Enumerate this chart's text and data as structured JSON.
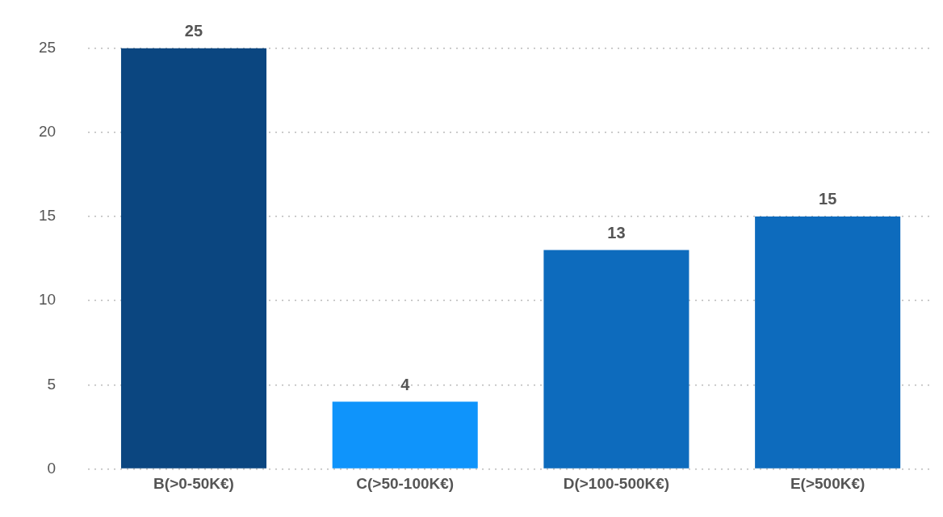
{
  "chart_data": {
    "type": "bar",
    "categories": [
      "B(>0-50K€)",
      "C(>50-100K€)",
      "D(>100-500K€)",
      "E(>500K€)"
    ],
    "values": [
      25,
      4,
      13,
      15
    ],
    "colors": [
      "#0b4680",
      "#0f94fb",
      "#0d6bbd",
      "#0d6bbd"
    ],
    "ylim": [
      0,
      25
    ],
    "yticks": [
      0,
      5,
      10,
      15,
      20,
      25
    ],
    "grid": "y",
    "data_labels": true,
    "legend": false
  }
}
